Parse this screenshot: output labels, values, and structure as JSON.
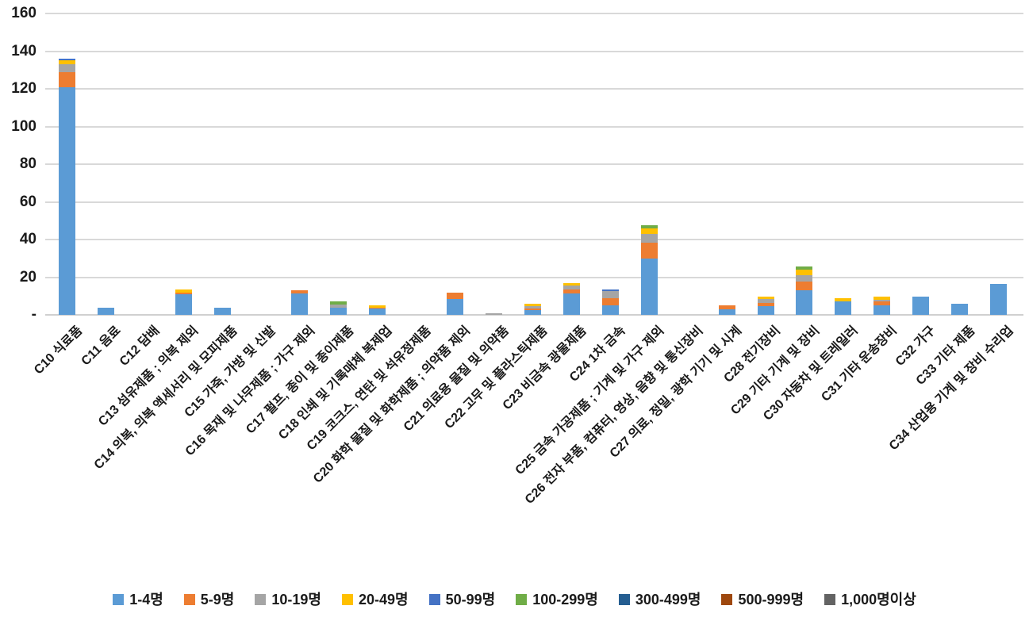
{
  "chart_data": {
    "type": "bar",
    "stacked": true,
    "title": "",
    "grid": true,
    "legend_position": "bottom",
    "y_axis": {
      "min": 0,
      "max": 160,
      "tick_interval": 20,
      "zero_tick_label": "-",
      "tick_labels_top_to_bottom": [
        "160",
        "140",
        "120",
        "100",
        "80",
        "60",
        "40",
        "20",
        "-"
      ]
    },
    "categories": [
      "C10 식료품",
      "C11 음료",
      "C12 담배",
      "C13 섬유제품 ; 의복 제외",
      "C14 의복, 의복 액세서리 및 모피제품",
      "C15 가죽, 가방 및 신발",
      "C16 목재 및 나무제품 ; 가구 제외",
      "C17 펄프, 종이 및 종이제품",
      "C18 인쇄 및 기록매체 복제업",
      "C19 코크스, 연탄 및 석유정제품",
      "C20 화학 물질 및 화학제품 ; 의약품 제외",
      "C21 의료용 물질 및 의약품",
      "C22 고무 및 플라스틱제품",
      "C23 비금속 광물제품",
      "C24 1차 금속",
      "C25 금속 가공제품 ; 기계 및 가구 제외",
      "C26 전자 부품, 컴퓨터, 영상, 음향 및 통신장비",
      "C27 의료, 정밀, 광학 기기 및 시계",
      "C28 전기장비",
      "C29 기타 기계 및 장비",
      "C30 자동차 및 트레일러",
      "C31 기타 운송장비",
      "C32 가구",
      "C33 기타 제품",
      "C34 산업용 기계 및 장비 수리업"
    ],
    "series": [
      {
        "name": "1-4명",
        "color": "#5B9BD5",
        "values": [
          121,
          4,
          0,
          11,
          4,
          0,
          11.5,
          4,
          3.5,
          0,
          8.5,
          0,
          2.5,
          11.5,
          5,
          30,
          0,
          3,
          4.5,
          13,
          7,
          5,
          9.5,
          6,
          16.5
        ]
      },
      {
        "name": "5-9명",
        "color": "#ED7D31",
        "values": [
          8,
          0,
          0,
          1,
          0,
          0,
          1.5,
          0,
          0.5,
          0,
          3.5,
          0,
          1,
          2,
          4,
          8.5,
          0,
          2,
          2,
          4.5,
          0,
          2,
          0,
          0,
          0
        ]
      },
      {
        "name": "10-19명",
        "color": "#A5A5A5",
        "values": [
          4,
          0,
          0,
          0,
          0,
          0,
          0,
          1.5,
          0,
          0,
          0,
          1,
          1,
          2,
          3.5,
          4.5,
          0,
          0,
          2,
          3.5,
          0,
          1,
          0,
          0,
          0
        ]
      },
      {
        "name": "20-49명",
        "color": "#FFC000",
        "values": [
          2,
          0,
          0,
          1.5,
          0,
          0,
          0,
          0,
          1,
          0,
          0,
          0,
          1.5,
          1.5,
          0,
          3,
          0,
          0,
          1,
          3,
          2,
          1.5,
          0,
          0,
          0
        ]
      },
      {
        "name": "50-99명",
        "color": "#4472C4",
        "values": [
          1,
          0,
          0,
          0,
          0,
          0,
          0,
          0,
          0,
          0,
          0,
          0,
          0,
          0,
          1,
          0,
          0,
          0,
          0,
          0,
          0,
          0,
          0,
          0,
          0
        ]
      },
      {
        "name": "100-299명",
        "color": "#70AD47",
        "values": [
          0,
          0,
          0,
          0,
          0,
          0,
          0,
          1.5,
          0,
          0,
          0,
          0,
          0,
          0,
          0,
          1.5,
          0,
          0,
          0,
          1.5,
          0,
          0,
          0,
          0,
          0
        ]
      },
      {
        "name": "300-499명",
        "color": "#255E91",
        "values": [
          0,
          0,
          0,
          0,
          0,
          0,
          0,
          0,
          0,
          0,
          0,
          0,
          0,
          0,
          0,
          0,
          0,
          0,
          0,
          0,
          0,
          0,
          0,
          0,
          0
        ]
      },
      {
        "name": "500-999명",
        "color": "#9E480E",
        "values": [
          0,
          0,
          0,
          0,
          0,
          0,
          0,
          0,
          0,
          0,
          0,
          0,
          0,
          0,
          0,
          0,
          0,
          0,
          0,
          0,
          0,
          0,
          0,
          0,
          0
        ]
      },
      {
        "name": "1,000명이상",
        "color": "#636363",
        "values": [
          0,
          0,
          0,
          0,
          0,
          0,
          0,
          0,
          0,
          0,
          0,
          0,
          0,
          0,
          0,
          0,
          0,
          0,
          0,
          0,
          0,
          0,
          0,
          0,
          0
        ]
      }
    ]
  }
}
